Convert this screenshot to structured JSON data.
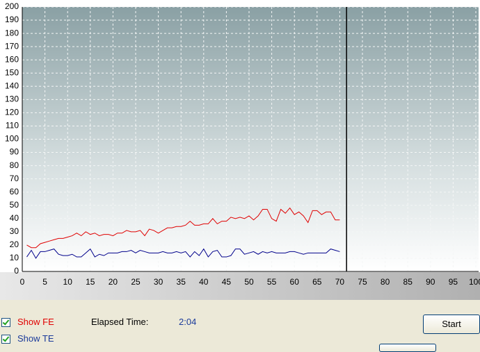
{
  "chart_data": {
    "type": "line",
    "x": [
      1,
      2,
      3,
      4,
      5,
      6,
      7,
      8,
      9,
      10,
      11,
      12,
      13,
      14,
      15,
      16,
      17,
      18,
      19,
      20,
      21,
      22,
      23,
      24,
      25,
      26,
      27,
      28,
      29,
      30,
      31,
      32,
      33,
      34,
      35,
      36,
      37,
      38,
      39,
      40,
      41,
      42,
      43,
      44,
      45,
      46,
      47,
      48,
      49,
      50,
      51,
      52,
      53,
      54,
      55,
      56,
      57,
      58,
      59,
      60,
      61,
      62,
      63,
      64,
      65,
      66,
      67,
      68,
      69,
      70
    ],
    "series": [
      {
        "name": "Show FE",
        "color": "#e00000",
        "values": [
          20,
          18,
          18,
          21,
          22,
          23,
          24,
          25,
          25,
          26,
          27,
          29,
          27,
          30,
          28,
          29,
          27,
          28,
          28,
          27,
          29,
          29,
          31,
          30,
          30,
          31,
          27,
          32,
          31,
          29,
          31,
          33,
          33,
          34,
          34,
          35,
          38,
          35,
          35,
          36,
          36,
          40,
          36,
          38,
          38,
          41,
          40,
          41,
          40,
          42,
          39,
          42,
          47,
          47,
          40,
          38,
          47,
          44,
          48,
          43,
          45,
          42,
          37,
          46,
          46,
          43,
          45,
          45,
          39,
          39
        ]
      },
      {
        "name": "Show TE",
        "color": "#00008b",
        "values": [
          11,
          16,
          10,
          15,
          15,
          16,
          17,
          13,
          12,
          12,
          13,
          11,
          11,
          14,
          17,
          11,
          13,
          12,
          14,
          14,
          14,
          15,
          15,
          16,
          14,
          16,
          15,
          14,
          14,
          14,
          15,
          14,
          14,
          15,
          14,
          15,
          11,
          15,
          12,
          17,
          11,
          15,
          16,
          11,
          11,
          12,
          17,
          17,
          13,
          14,
          15,
          13,
          15,
          14,
          15,
          14,
          14,
          14,
          15,
          15,
          14,
          13,
          14,
          14,
          14,
          14,
          14,
          17,
          16,
          15
        ]
      }
    ],
    "cursor_x": 71.5,
    "xlim": [
      0,
      100
    ],
    "xticks": [
      0,
      5,
      10,
      15,
      20,
      25,
      30,
      35,
      40,
      45,
      50,
      55,
      60,
      65,
      70,
      75,
      80,
      85,
      90,
      95,
      100
    ],
    "ylim": [
      0,
      200
    ],
    "yticks": [
      0,
      10,
      20,
      30,
      40,
      50,
      60,
      70,
      80,
      90,
      100,
      110,
      120,
      130,
      140,
      150,
      160,
      170,
      180,
      190,
      200
    ],
    "grid": true
  },
  "panel": {
    "elapsed_label": "Elapsed Time:",
    "elapsed_value": "2:04",
    "button": "Start"
  }
}
